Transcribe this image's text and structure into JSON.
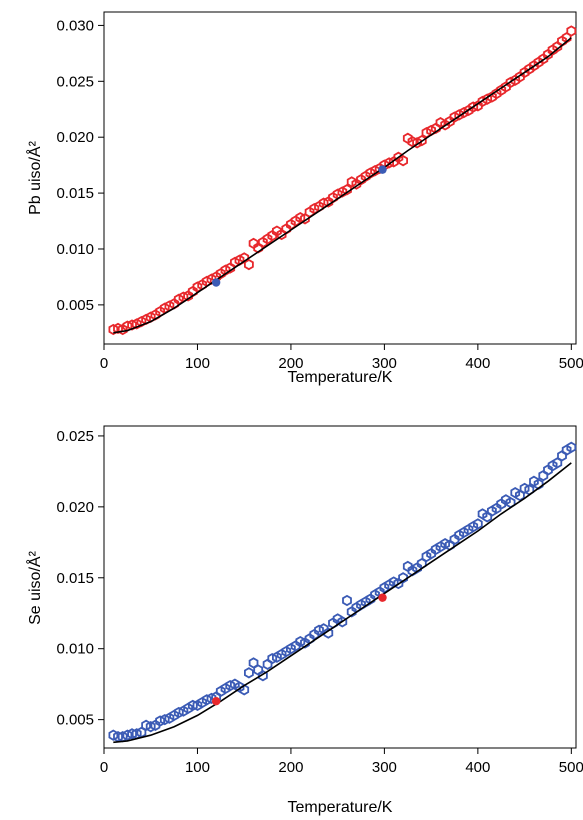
{
  "chart_data": [
    {
      "type": "scatter",
      "xlabel": "Temperature/K",
      "ylabel": "Pb uiso/Å²",
      "xlim": [
        0,
        505
      ],
      "ylim": [
        0.0015,
        0.0312
      ],
      "xticks": [
        "0",
        "100",
        "200",
        "300",
        "400",
        "500"
      ],
      "yticks": [
        "0.005",
        "0.010",
        "0.015",
        "0.020",
        "0.025",
        "0.030"
      ],
      "colors": {
        "measured": "#e8282c",
        "reference": "#3b5bb5",
        "fit": "#000000"
      },
      "series": [
        {
          "marker": "open-hexagon",
          "x": [
            10,
            15,
            20,
            25,
            30,
            35,
            40,
            45,
            50,
            55,
            60,
            65,
            70,
            75,
            80,
            85,
            90,
            95,
            100,
            105,
            110,
            115,
            120,
            125,
            130,
            135,
            140,
            145,
            150,
            155,
            160,
            165,
            170,
            175,
            180,
            185,
            190,
            195,
            200,
            205,
            210,
            215,
            220,
            225,
            230,
            235,
            240,
            245,
            250,
            255,
            260,
            265,
            270,
            275,
            280,
            285,
            290,
            295,
            300,
            305,
            310,
            315,
            320,
            325,
            330,
            335,
            340,
            345,
            350,
            355,
            360,
            365,
            370,
            375,
            380,
            385,
            390,
            395,
            400,
            405,
            410,
            415,
            420,
            425,
            430,
            435,
            440,
            445,
            450,
            455,
            460,
            465,
            470,
            475,
            480,
            485,
            490,
            495,
            500
          ],
          "y": [
            0.0028,
            0.0029,
            0.0028,
            0.0031,
            0.0032,
            0.0033,
            0.0035,
            0.0037,
            0.0039,
            0.0041,
            0.0044,
            0.0047,
            0.0049,
            0.0051,
            0.0055,
            0.0057,
            0.0058,
            0.0062,
            0.0066,
            0.0068,
            0.0071,
            0.0073,
            0.0075,
            0.0078,
            0.0081,
            0.0083,
            0.0088,
            0.009,
            0.0092,
            0.0086,
            0.0105,
            0.0101,
            0.0106,
            0.0109,
            0.0112,
            0.0116,
            0.0113,
            0.0118,
            0.0122,
            0.0125,
            0.0128,
            0.0127,
            0.0133,
            0.0136,
            0.0138,
            0.0141,
            0.0142,
            0.0146,
            0.0149,
            0.0151,
            0.0153,
            0.016,
            0.0158,
            0.0162,
            0.0165,
            0.0168,
            0.017,
            0.0172,
            0.0175,
            0.0177,
            0.0178,
            0.0182,
            0.0179,
            0.0199,
            0.0196,
            0.0195,
            0.0197,
            0.0204,
            0.0206,
            0.0208,
            0.0213,
            0.0211,
            0.0214,
            0.0218,
            0.022,
            0.0222,
            0.0224,
            0.0227,
            0.0228,
            0.0232,
            0.0234,
            0.0236,
            0.0239,
            0.0242,
            0.0245,
            0.0249,
            0.0251,
            0.0254,
            0.0258,
            0.0261,
            0.0264,
            0.0267,
            0.027,
            0.0274,
            0.0278,
            0.0281,
            0.0286,
            0.0289,
            0.0295
          ]
        },
        {
          "marker": "filled-circle",
          "x": [
            120,
            298
          ],
          "y": [
            0.007,
            0.0171
          ]
        },
        {
          "marker": "line",
          "x": [
            10,
            25,
            50,
            75,
            100,
            125,
            150,
            175,
            200,
            225,
            250,
            275,
            300,
            325,
            350,
            375,
            400,
            425,
            450,
            475,
            500
          ],
          "y": [
            0.0025,
            0.0027,
            0.0035,
            0.0047,
            0.0061,
            0.0075,
            0.0089,
            0.0103,
            0.0117,
            0.0131,
            0.0145,
            0.0159,
            0.0173,
            0.0188,
            0.0202,
            0.0216,
            0.023,
            0.0244,
            0.0258,
            0.0272,
            0.0289
          ]
        }
      ]
    },
    {
      "type": "scatter",
      "xlabel": "Temperature/K",
      "ylabel": "Se uiso/Å²",
      "xlim": [
        0,
        505
      ],
      "ylim": [
        0.003,
        0.0257
      ],
      "xticks": [
        "0",
        "100",
        "200",
        "300",
        "400",
        "500"
      ],
      "yticks": [
        "0.005",
        "0.010",
        "0.015",
        "0.020",
        "0.025"
      ],
      "colors": {
        "measured": "#3b5bb5",
        "reference": "#e8282c",
        "fit": "#000000"
      },
      "series": [
        {
          "marker": "open-hexagon",
          "x": [
            10,
            15,
            20,
            25,
            30,
            35,
            40,
            45,
            50,
            55,
            60,
            65,
            70,
            75,
            80,
            85,
            90,
            95,
            100,
            105,
            110,
            115,
            120,
            125,
            130,
            135,
            140,
            145,
            150,
            155,
            160,
            165,
            170,
            175,
            180,
            185,
            190,
            195,
            200,
            205,
            210,
            215,
            220,
            225,
            230,
            235,
            240,
            245,
            250,
            255,
            260,
            265,
            270,
            275,
            280,
            285,
            290,
            295,
            300,
            305,
            310,
            315,
            320,
            325,
            330,
            335,
            340,
            345,
            350,
            355,
            360,
            365,
            370,
            375,
            380,
            385,
            390,
            395,
            400,
            405,
            410,
            415,
            420,
            425,
            430,
            435,
            440,
            445,
            450,
            455,
            460,
            465,
            470,
            475,
            480,
            485,
            490,
            495,
            500
          ],
          "y": [
            0.0039,
            0.0038,
            0.0038,
            0.0039,
            0.004,
            0.004,
            0.0041,
            0.0046,
            0.0045,
            0.0046,
            0.0049,
            0.005,
            0.0051,
            0.0053,
            0.0055,
            0.0056,
            0.0058,
            0.006,
            0.006,
            0.0062,
            0.0064,
            0.0065,
            0.0066,
            0.007,
            0.0072,
            0.0074,
            0.0075,
            0.0073,
            0.0071,
            0.0083,
            0.009,
            0.0085,
            0.0081,
            0.0089,
            0.0093,
            0.0094,
            0.0096,
            0.0098,
            0.01,
            0.0102,
            0.0105,
            0.0104,
            0.0107,
            0.011,
            0.0113,
            0.0114,
            0.0111,
            0.0118,
            0.0121,
            0.0119,
            0.0134,
            0.0126,
            0.0129,
            0.0131,
            0.0133,
            0.0135,
            0.0138,
            0.014,
            0.0143,
            0.0145,
            0.0147,
            0.0146,
            0.015,
            0.0158,
            0.0155,
            0.0157,
            0.016,
            0.0165,
            0.0167,
            0.017,
            0.0172,
            0.0174,
            0.0173,
            0.0177,
            0.018,
            0.0182,
            0.0184,
            0.0186,
            0.0188,
            0.0195,
            0.0193,
            0.0197,
            0.0199,
            0.0202,
            0.0205,
            0.0203,
            0.021,
            0.0208,
            0.0213,
            0.0212,
            0.0218,
            0.0216,
            0.0222,
            0.0226,
            0.0229,
            0.0231,
            0.0236,
            0.024,
            0.0242
          ]
        },
        {
          "marker": "filled-circle",
          "x": [
            120,
            298
          ],
          "y": [
            0.0063,
            0.0136
          ]
        },
        {
          "marker": "line",
          "x": [
            10,
            25,
            50,
            75,
            100,
            125,
            150,
            175,
            200,
            225,
            250,
            275,
            300,
            325,
            350,
            375,
            400,
            425,
            450,
            475,
            500
          ],
          "y": [
            0.0034,
            0.0035,
            0.0039,
            0.0045,
            0.0053,
            0.0063,
            0.0074,
            0.0084,
            0.0095,
            0.0106,
            0.0117,
            0.0128,
            0.0139,
            0.015,
            0.0161,
            0.0172,
            0.0183,
            0.0195,
            0.0206,
            0.0218,
            0.0231
          ]
        }
      ]
    }
  ]
}
